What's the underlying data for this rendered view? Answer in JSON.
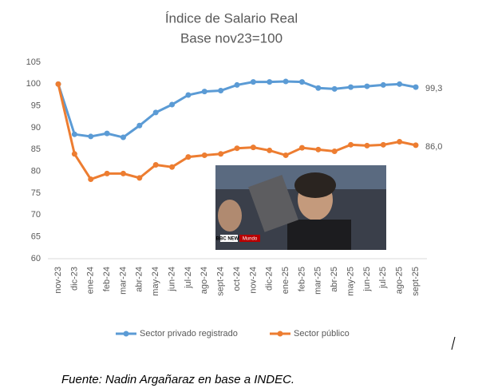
{
  "chart_data": {
    "type": "line",
    "title": "Índice de Salario Real",
    "subtitle": "Base nov23=100",
    "categories": [
      "nov-23",
      "dic-23",
      "ene-24",
      "feb-24",
      "mar-24",
      "abr-24",
      "may-24",
      "jun-24",
      "jul-24",
      "ago-24",
      "sept-24",
      "oct-24",
      "nov-24",
      "dic-24",
      "ene-25",
      "feb-25",
      "mar-25",
      "abr-25",
      "may-25",
      "jun-25",
      "jul-25",
      "ago-25",
      "sept-25"
    ],
    "series": [
      {
        "name": "Sector privado registrado",
        "color": "#5b9bd5",
        "values": [
          100,
          88.5,
          88,
          88.7,
          87.8,
          90.5,
          93.5,
          95.3,
          97.5,
          98.3,
          98.5,
          99.8,
          100.5,
          100.5,
          100.6,
          100.5,
          99.1,
          98.9,
          99.3,
          99.5,
          99.8,
          100,
          99.3
        ],
        "value_labels": [
          null,
          null,
          null,
          null,
          null,
          null,
          null,
          null,
          null,
          null,
          null,
          null,
          null,
          null,
          null,
          null,
          null,
          null,
          null,
          null,
          null,
          null,
          "99,3"
        ]
      },
      {
        "name": "Sector público",
        "color": "#ed7d31",
        "values": [
          100,
          84,
          78.2,
          79.5,
          79.5,
          78.5,
          81.5,
          81,
          83.3,
          83.7,
          84,
          85.3,
          85.5,
          84.8,
          83.7,
          85.4,
          85,
          84.6,
          86.1,
          85.9,
          86.1,
          86.8,
          86
        ],
        "value_labels": [
          null,
          null,
          null,
          null,
          null,
          null,
          null,
          null,
          null,
          null,
          null,
          null,
          null,
          null,
          null,
          null,
          null,
          null,
          null,
          null,
          null,
          null,
          "86,0"
        ]
      }
    ],
    "ylim": [
      60,
      105
    ],
    "yticks": [
      60,
      65,
      70,
      75,
      80,
      85,
      90,
      95,
      100,
      105
    ],
    "grid": false,
    "legend": "bottom",
    "source": "Fuente: Nadin Argañaraz en base a INDEC.",
    "image_caption": {
      "brand": "BBC NEWS",
      "section": "Mundo"
    }
  }
}
